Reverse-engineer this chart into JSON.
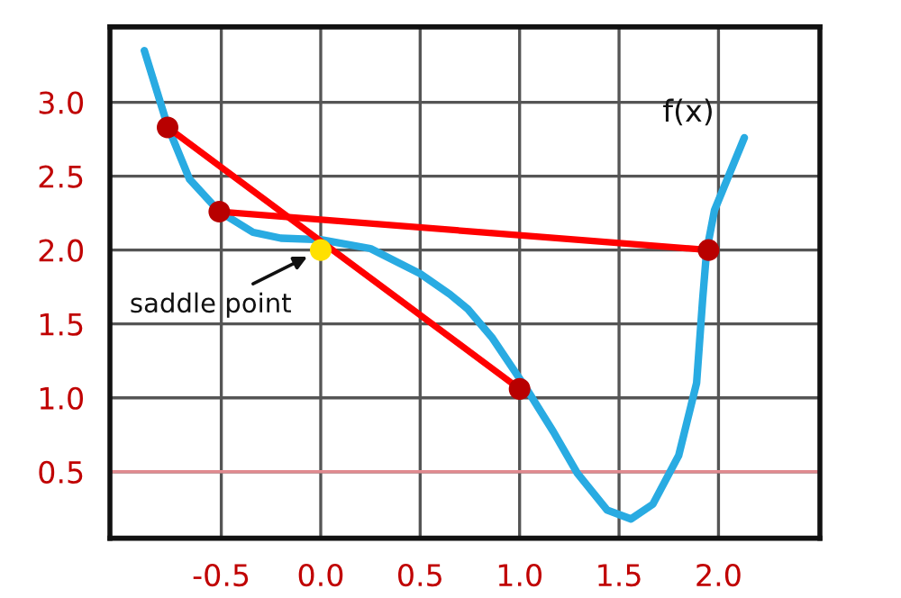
{
  "chart_data": {
    "type": "line",
    "xlim": [
      -1.06,
      2.51
    ],
    "ylim": [
      0.05,
      3.51
    ],
    "xticks": [
      -0.5,
      {
        "value": 0,
        "label": "0.0"
      },
      0.5,
      {
        "value": 1,
        "label": "1.0"
      },
      1.5,
      {
        "value": 2,
        "label": "2.0"
      }
    ],
    "yticks": [
      0.5,
      {
        "value": 1,
        "label": "1.0"
      },
      1.5,
      {
        "value": 2,
        "label": "2.0"
      },
      2.5,
      {
        "value": 3,
        "label": "3.0"
      }
    ],
    "grid": true,
    "legend": false,
    "ref_lines": [
      {
        "axis": "y",
        "value": 0.5,
        "color": "#e08a8f"
      }
    ],
    "annotations": [
      {
        "text": "saddle point",
        "x": 0.0,
        "y": 2.0
      }
    ],
    "series": [
      {
        "name": "f(x)",
        "color": "#29abe2",
        "x": [
          -0.887,
          -0.77,
          -0.66,
          -0.51,
          -0.34,
          -0.2,
          0.0,
          0.25,
          0.5,
          0.65,
          0.74,
          0.86,
          1.04,
          1.17,
          1.29,
          1.44,
          1.56,
          1.67,
          1.8,
          1.89,
          1.92,
          1.94,
          1.98,
          2.13
        ],
        "values": [
          3.35,
          2.84,
          2.48,
          2.26,
          2.12,
          2.08,
          2.07,
          2.01,
          1.84,
          1.7,
          1.6,
          1.41,
          1.05,
          0.77,
          0.49,
          0.24,
          0.18,
          0.28,
          0.61,
          1.1,
          1.66,
          1.99,
          2.27,
          2.76
        ]
      },
      {
        "color": "#ff0000",
        "x": [
          -0.77,
          1.0
        ],
        "values": [
          2.83,
          1.06
        ]
      },
      {
        "color": "#ff0000",
        "x": [
          -0.51,
          1.95
        ],
        "values": [
          2.26,
          2.0
        ]
      },
      {
        "type": "scatter",
        "color": "#b80000",
        "x": [
          -0.77,
          1.0,
          -0.51,
          1.95
        ],
        "values": [
          2.83,
          1.06,
          2.26,
          2.0
        ]
      },
      {
        "type": "scatter",
        "color": "#ffe000",
        "x": [
          0.0
        ],
        "values": [
          2.0
        ]
      }
    ]
  }
}
